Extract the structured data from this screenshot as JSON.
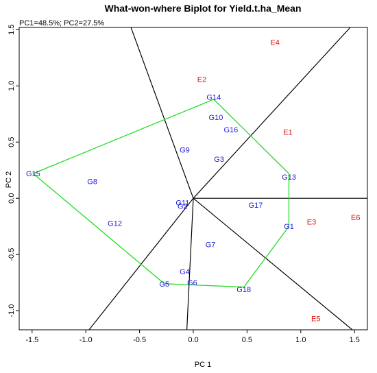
{
  "chart_data": {
    "type": "scatter",
    "title": "What-won-where Biplot for Yield.t.ha_Mean",
    "subtitle": "PC1=48.5%; PC2=27.5%",
    "xlabel": "PC 1",
    "ylabel": "PC 2",
    "xlim": [
      -1.62,
      1.62
    ],
    "ylim": [
      -1.17,
      1.52
    ],
    "x_ticks": [
      -1.5,
      -1.0,
      -0.5,
      0.0,
      0.5,
      1.0,
      1.5
    ],
    "x_tick_labels": [
      "-1.5",
      "-1.0",
      "-0.5",
      "0.0",
      "0.5",
      "1.0",
      "1.5"
    ],
    "y_ticks": [
      -1.0,
      -0.5,
      0.0,
      0.5,
      1.0,
      1.5
    ],
    "y_tick_labels": [
      "-1.0",
      "-0.5",
      "0.0",
      "0.5",
      "1.0",
      "1.5"
    ],
    "colors": {
      "genotype": "#1a1adc",
      "environment": "#e01010",
      "hull": "#22dd22",
      "sector": "#000000"
    },
    "genotypes": [
      {
        "label": "G1",
        "x": 0.89,
        "y": -0.25
      },
      {
        "label": "G2",
        "x": -0.1,
        "y": -0.07
      },
      {
        "label": "G3",
        "x": 0.24,
        "y": 0.35
      },
      {
        "label": "G4",
        "x": -0.08,
        "y": -0.65
      },
      {
        "label": "G5",
        "x": -0.27,
        "y": -0.76
      },
      {
        "label": "G6",
        "x": -0.01,
        "y": -0.75
      },
      {
        "label": "G7",
        "x": 0.16,
        "y": -0.41
      },
      {
        "label": "G8",
        "x": -0.94,
        "y": 0.15
      },
      {
        "label": "G9",
        "x": -0.08,
        "y": 0.43
      },
      {
        "label": "G10",
        "x": 0.21,
        "y": 0.72
      },
      {
        "label": "G11",
        "x": -0.1,
        "y": -0.04
      },
      {
        "label": "G12",
        "x": -0.73,
        "y": -0.22
      },
      {
        "label": "G13",
        "x": 0.89,
        "y": 0.19
      },
      {
        "label": "G14",
        "x": 0.19,
        "y": 0.9
      },
      {
        "label": "G15",
        "x": -1.49,
        "y": 0.22
      },
      {
        "label": "G16",
        "x": 0.35,
        "y": 0.61
      },
      {
        "label": "G17",
        "x": 0.58,
        "y": -0.06
      },
      {
        "label": "G18",
        "x": 0.47,
        "y": -0.81
      }
    ],
    "environments": [
      {
        "label": "E1",
        "x": 0.88,
        "y": 0.59
      },
      {
        "label": "E2",
        "x": 0.08,
        "y": 1.06
      },
      {
        "label": "E3",
        "x": 1.1,
        "y": -0.21
      },
      {
        "label": "E4",
        "x": 0.76,
        "y": 1.39
      },
      {
        "label": "E5",
        "x": 1.14,
        "y": -1.07
      },
      {
        "label": "E6",
        "x": 1.51,
        "y": -0.17
      }
    ],
    "hull": [
      {
        "x": 0.19,
        "y": 0.88
      },
      {
        "x": 0.89,
        "y": 0.22
      },
      {
        "x": 0.89,
        "y": -0.25
      },
      {
        "x": 0.47,
        "y": -0.79
      },
      {
        "x": -0.27,
        "y": -0.76
      },
      {
        "x": -1.49,
        "y": 0.22
      }
    ],
    "sector_lines": [
      {
        "x": -0.58,
        "y": 1.52
      },
      {
        "x": 1.46,
        "y": 1.52
      },
      {
        "x": 1.62,
        "y": 0.0
      },
      {
        "x": 1.48,
        "y": -1.17
      },
      {
        "x": -0.06,
        "y": -1.17
      },
      {
        "x": -0.97,
        "y": -1.17
      }
    ]
  }
}
